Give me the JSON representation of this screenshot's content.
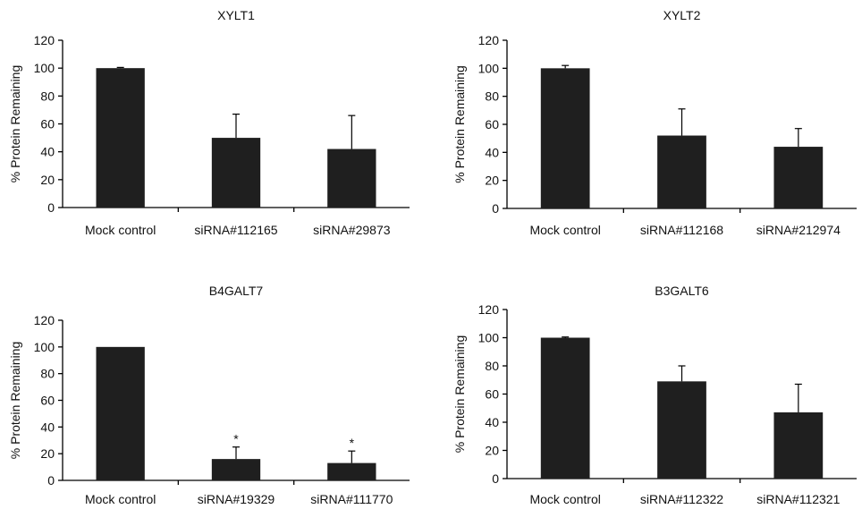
{
  "chart_data": [
    {
      "type": "bar",
      "title": "XYLT1",
      "ylabel": "% Protein Remaining",
      "ylim": [
        0,
        120
      ],
      "yticks": [
        "0",
        "20",
        "40",
        "60",
        "80",
        "100",
        "120"
      ],
      "categories": [
        "Mock control",
        "siRNA#112165",
        "siRNA#29873"
      ],
      "values": [
        100,
        50,
        42
      ],
      "error_upper": [
        0.5,
        17,
        24
      ],
      "markers": [
        "",
        "",
        ""
      ]
    },
    {
      "type": "bar",
      "title": "XYLT2",
      "ylabel": "% Protein Remaining",
      "ylim": [
        0,
        120
      ],
      "yticks": [
        "0",
        "20",
        "40",
        "60",
        "80",
        "100",
        "120"
      ],
      "categories": [
        "Mock control",
        "siRNA#112168",
        "siRNA#212974"
      ],
      "values": [
        100,
        52,
        44
      ],
      "error_upper": [
        2,
        19,
        13
      ],
      "markers": [
        "",
        "",
        ""
      ]
    },
    {
      "type": "bar",
      "title": "B4GALT7",
      "ylabel": "% Protein Remaining",
      "ylim": [
        0,
        120
      ],
      "yticks": [
        "0",
        "20",
        "40",
        "60",
        "80",
        "100",
        "120"
      ],
      "categories": [
        "Mock control",
        "siRNA#19329",
        "siRNA#111770"
      ],
      "values": [
        100,
        16,
        13
      ],
      "error_upper": [
        0,
        9,
        9
      ],
      "markers": [
        "",
        "*",
        "*"
      ]
    },
    {
      "type": "bar",
      "title": "B3GALT6",
      "ylabel": "% Protein Remaining",
      "ylim": [
        0,
        120
      ],
      "yticks": [
        "0",
        "20",
        "40",
        "60",
        "80",
        "100",
        "120"
      ],
      "categories": [
        "Mock control",
        "siRNA#112322",
        "siRNA#112321"
      ],
      "values": [
        100,
        69,
        47
      ],
      "error_upper": [
        0.5,
        11,
        20
      ],
      "markers": [
        "",
        "",
        ""
      ]
    }
  ],
  "colors": {
    "bar": "#1f1f1f",
    "axis": "#000000"
  }
}
